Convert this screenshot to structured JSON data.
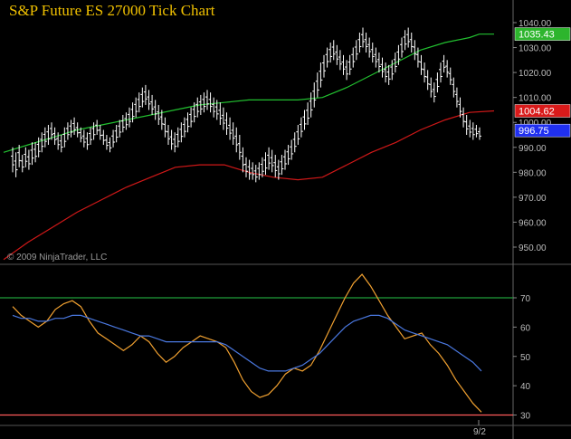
{
  "chart_title": "S&P Future ES 27000 Tick Chart",
  "copyright": "© 2009 NinjaTrader, LLC",
  "chart_data": [
    {
      "type": "line",
      "title": "S&P Future ES 27000 Tick Chart",
      "ylim": [
        943,
        1042
      ],
      "x_tick": "9/2",
      "y_ticks": [
        "1040.00",
        "1030.00",
        "1020.00",
        "1010.00",
        "1000.00",
        "990.00",
        "980.00",
        "970.00",
        "960.00",
        "950.00"
      ],
      "price_bars": [
        [
          990,
          980
        ],
        [
          988,
          978
        ],
        [
          991,
          982
        ],
        [
          987,
          980
        ],
        [
          990,
          982
        ],
        [
          989,
          981
        ],
        [
          992,
          983
        ],
        [
          992,
          984
        ],
        [
          994,
          986
        ],
        [
          996,
          988
        ],
        [
          998,
          990
        ],
        [
          999,
          991
        ],
        [
          1000,
          993
        ],
        [
          998,
          991
        ],
        [
          996,
          989
        ],
        [
          995,
          988
        ],
        [
          998,
          990
        ],
        [
          1000,
          993
        ],
        [
          1001,
          994
        ],
        [
          1002,
          995
        ],
        [
          1000,
          994
        ],
        [
          998,
          992
        ],
        [
          997,
          990
        ],
        [
          996,
          989
        ],
        [
          998,
          991
        ],
        [
          1000,
          993
        ],
        [
          1001,
          995
        ],
        [
          999,
          993
        ],
        [
          997,
          991
        ],
        [
          995,
          989
        ],
        [
          994,
          988
        ],
        [
          997,
          990
        ],
        [
          999,
          992
        ],
        [
          1001,
          994
        ],
        [
          1003,
          996
        ],
        [
          1004,
          997
        ],
        [
          1006,
          998
        ],
        [
          1008,
          1000
        ],
        [
          1010,
          1002
        ],
        [
          1012,
          1004
        ],
        [
          1014,
          1006
        ],
        [
          1015,
          1007
        ],
        [
          1013,
          1005
        ],
        [
          1011,
          1003
        ],
        [
          1009,
          1001
        ],
        [
          1007,
          999
        ],
        [
          1005,
          997
        ],
        [
          1002,
          994
        ],
        [
          999,
          991
        ],
        [
          997,
          989
        ],
        [
          996,
          988
        ],
        [
          998,
          990
        ],
        [
          1000,
          992
        ],
        [
          1002,
          994
        ],
        [
          1004,
          996
        ],
        [
          1006,
          998
        ],
        [
          1008,
          1000
        ],
        [
          1010,
          1002
        ],
        [
          1011,
          1003
        ],
        [
          1012,
          1004
        ],
        [
          1013,
          1005
        ],
        [
          1012,
          1004
        ],
        [
          1010,
          1002
        ],
        [
          1009,
          1001
        ],
        [
          1008,
          999
        ],
        [
          1006,
          997
        ],
        [
          1004,
          995
        ],
        [
          1002,
          993
        ],
        [
          1000,
          991
        ],
        [
          998,
          988
        ],
        [
          995,
          985
        ],
        [
          990,
          980
        ],
        [
          986,
          978
        ],
        [
          985,
          977
        ],
        [
          984,
          977
        ],
        [
          983,
          976
        ],
        [
          984,
          977
        ],
        [
          986,
          978
        ],
        [
          988,
          979
        ],
        [
          990,
          981
        ],
        [
          989,
          980
        ],
        [
          987,
          978
        ],
        [
          985,
          977
        ],
        [
          987,
          979
        ],
        [
          989,
          981
        ],
        [
          991,
          983
        ],
        [
          993,
          985
        ],
        [
          996,
          988
        ],
        [
          999,
          991
        ],
        [
          1002,
          994
        ],
        [
          1005,
          997
        ],
        [
          1008,
          999
        ],
        [
          1012,
          1002
        ],
        [
          1016,
          1006
        ],
        [
          1020,
          1010
        ],
        [
          1024,
          1014
        ],
        [
          1027,
          1018
        ],
        [
          1030,
          1022
        ],
        [
          1032,
          1024
        ],
        [
          1033,
          1025
        ],
        [
          1031,
          1023
        ],
        [
          1029,
          1021
        ],
        [
          1027,
          1019
        ],
        [
          1025,
          1017
        ],
        [
          1027,
          1019
        ],
        [
          1030,
          1022
        ],
        [
          1033,
          1025
        ],
        [
          1036,
          1028
        ],
        [
          1038,
          1030
        ],
        [
          1036,
          1028
        ],
        [
          1034,
          1026
        ],
        [
          1032,
          1024
        ],
        [
          1030,
          1022
        ],
        [
          1028,
          1020
        ],
        [
          1026,
          1018
        ],
        [
          1024,
          1016
        ],
        [
          1023,
          1015
        ],
        [
          1025,
          1017
        ],
        [
          1028,
          1020
        ],
        [
          1031,
          1023
        ],
        [
          1034,
          1026
        ],
        [
          1037,
          1029
        ],
        [
          1038,
          1030
        ],
        [
          1036,
          1028
        ],
        [
          1033,
          1025
        ],
        [
          1030,
          1022
        ],
        [
          1027,
          1019
        ],
        [
          1024,
          1016
        ],
        [
          1021,
          1013
        ],
        [
          1018,
          1010
        ],
        [
          1016,
          1008
        ],
        [
          1020,
          1012
        ],
        [
          1024,
          1016
        ],
        [
          1027,
          1020
        ],
        [
          1025,
          1018
        ],
        [
          1022,
          1015
        ],
        [
          1018,
          1010
        ],
        [
          1014,
          1006
        ],
        [
          1010,
          1002
        ],
        [
          1006,
          998
        ],
        [
          1003,
          995
        ],
        [
          1001,
          994
        ],
        [
          1000,
          993
        ],
        [
          999,
          994
        ],
        [
          998,
          993
        ]
      ],
      "ma_green": [
        [
          0,
          988
        ],
        [
          0.05,
          991
        ],
        [
          0.1,
          994
        ],
        [
          0.15,
          997
        ],
        [
          0.2,
          999
        ],
        [
          0.25,
          1001
        ],
        [
          0.3,
          1003
        ],
        [
          0.35,
          1005
        ],
        [
          0.4,
          1007
        ],
        [
          0.45,
          1008
        ],
        [
          0.5,
          1009
        ],
        [
          0.55,
          1009
        ],
        [
          0.6,
          1009
        ],
        [
          0.65,
          1010
        ],
        [
          0.7,
          1014
        ],
        [
          0.75,
          1019
        ],
        [
          0.8,
          1024
        ],
        [
          0.85,
          1029
        ],
        [
          0.9,
          1032
        ],
        [
          0.95,
          1034
        ],
        [
          0.97,
          1035.4
        ],
        [
          1,
          1035.4
        ]
      ],
      "ma_red": [
        [
          0,
          945
        ],
        [
          0.05,
          952
        ],
        [
          0.1,
          958
        ],
        [
          0.15,
          964
        ],
        [
          0.2,
          969
        ],
        [
          0.25,
          974
        ],
        [
          0.3,
          978
        ],
        [
          0.35,
          982
        ],
        [
          0.4,
          983
        ],
        [
          0.45,
          983
        ],
        [
          0.5,
          980
        ],
        [
          0.55,
          978
        ],
        [
          0.6,
          977
        ],
        [
          0.65,
          978
        ],
        [
          0.7,
          983
        ],
        [
          0.75,
          988
        ],
        [
          0.8,
          992
        ],
        [
          0.85,
          997
        ],
        [
          0.9,
          1001
        ],
        [
          0.95,
          1004
        ],
        [
          1,
          1004.6
        ]
      ],
      "price_labels": [
        {
          "text": "1035.43",
          "value": 1035.43,
          "color": "#2db52d"
        },
        {
          "text": "1004.62",
          "value": 1004.62,
          "color": "#d91a1a"
        },
        {
          "text": "996.75",
          "value": 996.75,
          "color": "#2030f0"
        }
      ]
    },
    {
      "type": "line",
      "title": "",
      "ylim": [
        29,
        82
      ],
      "y_ticks": [
        "70",
        "60",
        "50",
        "40",
        "30"
      ],
      "ref_lines": [
        {
          "value": 70,
          "color": "#1f9e3a"
        },
        {
          "value": 30,
          "color": "#ff5a5a"
        }
      ],
      "series": [
        {
          "color": "#f0a030",
          "values": [
            67,
            64,
            62,
            60,
            62,
            66,
            68,
            69,
            67,
            62,
            58,
            56,
            54,
            52,
            54,
            57,
            55,
            51,
            48,
            50,
            53,
            55,
            57,
            56,
            55,
            53,
            48,
            42,
            38,
            36,
            37,
            40,
            44,
            46,
            45,
            47,
            52,
            58,
            64,
            70,
            75,
            78,
            74,
            69,
            64,
            60,
            56,
            57,
            58,
            54,
            51,
            47,
            42,
            38,
            34,
            31
          ]
        },
        {
          "color": "#4a78e0",
          "values": [
            64,
            63,
            63,
            62,
            62,
            63,
            63,
            64,
            64,
            63,
            62,
            61,
            60,
            59,
            58,
            57,
            57,
            56,
            55,
            55,
            55,
            55,
            55,
            55,
            55,
            54,
            52,
            50,
            48,
            46,
            45,
            45,
            45,
            46,
            47,
            49,
            51,
            54,
            57,
            60,
            62,
            63,
            64,
            64,
            63,
            61,
            59,
            58,
            57,
            56,
            55,
            54,
            52,
            50,
            48,
            45
          ]
        }
      ]
    }
  ]
}
